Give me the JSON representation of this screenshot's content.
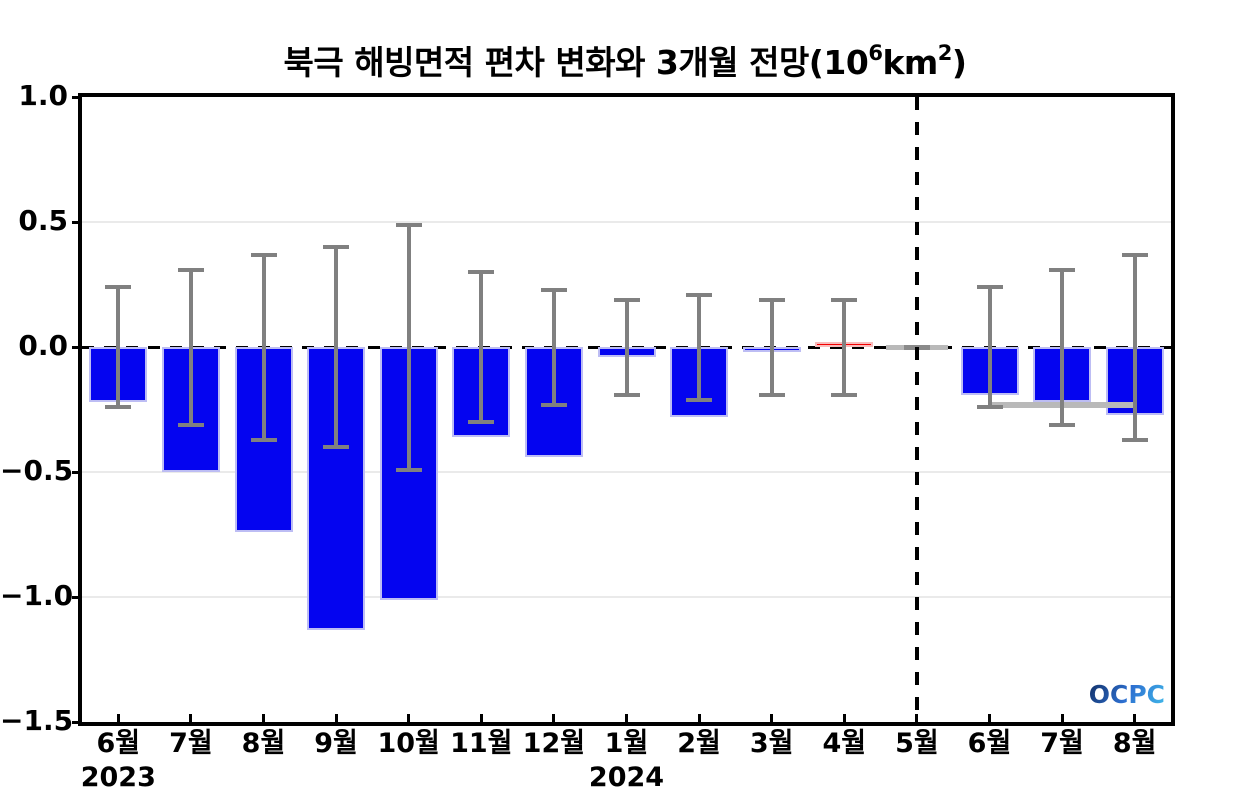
{
  "title": {
    "prefix": "북극 해빙면적 편차 변화와 3개월 전망(10",
    "sup1": "6",
    "mid": "km",
    "sup2": "2",
    "suffix": ")"
  },
  "logo": {
    "text": "OCPC"
  },
  "chart_data": {
    "type": "bar",
    "title": "북극 해빙면적 편차 변화와 3개월 전망(10⁶km²)",
    "xlabel": "",
    "ylabel": "",
    "ylim": [
      -1.5,
      1.0
    ],
    "grid": "horizontal-light",
    "legend": "none",
    "categories": [
      "6월",
      "7월",
      "8월",
      "9월",
      "10월",
      "11월",
      "12월",
      "1월",
      "2월",
      "3월",
      "4월",
      "5월",
      "6월",
      "7월",
      "8월"
    ],
    "year_labels": [
      {
        "index": 0,
        "label": "2023"
      },
      {
        "index": 7,
        "label": "2024"
      }
    ],
    "values": [
      -0.22,
      -0.5,
      -0.74,
      -1.13,
      -1.01,
      -0.36,
      -0.44,
      -0.04,
      -0.28,
      -0.02,
      0.02,
      0.0,
      -0.19,
      -0.22,
      -0.27
    ],
    "error_range_centered_at_zero": [
      0.24,
      0.31,
      0.37,
      0.4,
      0.49,
      0.3,
      0.23,
      0.19,
      0.21,
      0.19,
      0.19,
      0,
      0.24,
      0.31,
      0.37
    ],
    "bar_styles": [
      "obs",
      "obs",
      "obs",
      "obs",
      "obs",
      "obs",
      "obs",
      "obs",
      "obs",
      "obs",
      "latest",
      "current",
      "forecast",
      "forecast",
      "forecast"
    ],
    "yticks": [
      "1.0",
      "0.5",
      "0.0",
      "−0.5",
      "−1.0",
      "−1.5"
    ],
    "ytick_values": [
      1.0,
      0.5,
      0.0,
      -0.5,
      -1.0,
      -1.5
    ],
    "gridline_values": [
      0.5,
      -0.5,
      -1.0
    ],
    "zero_line_value": 0.0,
    "separator_dashed_at_index": 11,
    "forecast_mean_line": {
      "value": -0.23,
      "from_index": 12,
      "to_index": 14
    },
    "colors": {
      "bar_blue": "#0404f0",
      "bar_blue_edge": "#bdbdf4",
      "bar_red": "#f40000",
      "bar_red_edge": "#f8bcbc",
      "error_gray": "#808080",
      "current_cap_gray": "#8a8a8a",
      "light_gray": "#b9b9b9",
      "grid_gray": "#eaeaea",
      "axis_black": "#000000"
    }
  }
}
